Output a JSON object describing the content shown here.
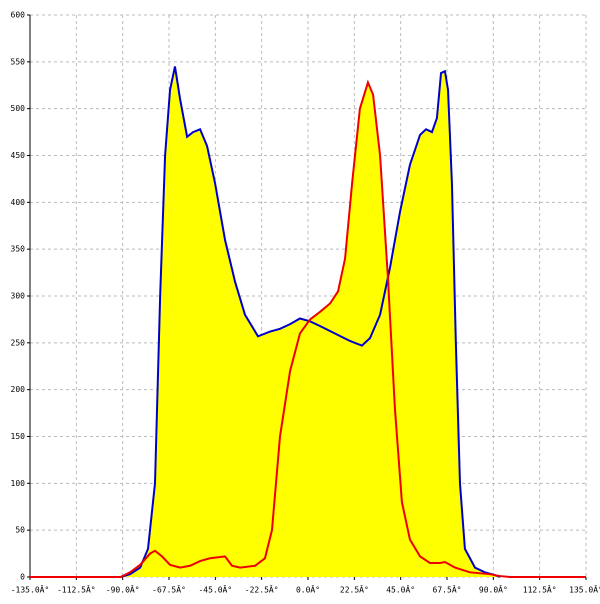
{
  "chart_data": {
    "type": "area",
    "xlim": [
      -135,
      135
    ],
    "ylim": [
      0,
      600
    ],
    "xticks": [
      {
        "value": -135,
        "label": "-135.0Â°"
      },
      {
        "value": -112.5,
        "label": "-112.5Â°"
      },
      {
        "value": -90,
        "label": "-90.0Â°"
      },
      {
        "value": -67.5,
        "label": "-67.5Â°"
      },
      {
        "value": -45,
        "label": "-45.0Â°"
      },
      {
        "value": -22.5,
        "label": "-22.5Â°"
      },
      {
        "value": 0,
        "label": "0.0Â°"
      },
      {
        "value": 22.5,
        "label": "22.5Â°"
      },
      {
        "value": 45,
        "label": "45.0Â°"
      },
      {
        "value": 67.5,
        "label": "67.5Â°"
      },
      {
        "value": 90,
        "label": "90.0Â°"
      },
      {
        "value": 112.5,
        "label": "112.5Â°"
      },
      {
        "value": 135,
        "label": "135.0Â°"
      }
    ],
    "yticks": [
      0,
      50,
      100,
      150,
      200,
      250,
      300,
      350,
      400,
      450,
      500,
      550,
      600
    ],
    "grid": true,
    "fill": "#ffff00",
    "series": [
      {
        "color": "#0000cc",
        "x": [
          -91,
          -86.4,
          -81.5,
          -77.7,
          -74.3,
          -71.8,
          -69.4,
          -67,
          -64.6,
          -62.1,
          -58.7,
          -55.8,
          -52.4,
          -49,
          -45.1,
          -40.3,
          -35.4,
          -30.6,
          -24.3,
          -18.4,
          -13.6,
          -8.7,
          -3.9,
          1,
          5.8,
          13.1,
          20.4,
          26.2,
          30.1,
          35,
          39.8,
          44.7,
          49.5,
          54.4,
          57.3,
          60.2,
          62.6,
          64.6,
          66.5,
          68,
          69.9,
          71.8,
          73.8,
          76.2,
          81.1,
          85.9,
          90.8,
          93.2
        ],
        "values": [
          0,
          3,
          10,
          30,
          100,
          300,
          450,
          520,
          545,
          510,
          470,
          475,
          478,
          460,
          420,
          360,
          315,
          280,
          257,
          262,
          265,
          270,
          276,
          273,
          268,
          260,
          252,
          247,
          255,
          280,
          330,
          390,
          440,
          472,
          478,
          475,
          490,
          538,
          540,
          520,
          420,
          250,
          100,
          30,
          10,
          5,
          2,
          0
        ]
      },
      {
        "color": "#ee0000",
        "x": [
          -135,
          -91,
          -86.4,
          -81.5,
          -76.7,
          -74.3,
          -70.9,
          -67,
          -62.1,
          -57.3,
          -52.4,
          -47.6,
          -40.3,
          -36.9,
          -33,
          -25.7,
          -20.9,
          -17.5,
          -13.6,
          -8.7,
          -3.9,
          1,
          5.8,
          10.7,
          14.6,
          18,
          21.4,
          25.2,
          29.1,
          31.6,
          35,
          38.8,
          42.2,
          45.6,
          49.5,
          54.4,
          59.2,
          64.1,
          66.5,
          71.4,
          78.6,
          88.3,
          93.2,
          98,
          135
        ],
        "values": [
          0,
          0,
          5,
          13,
          25,
          28,
          22,
          13,
          10,
          12,
          17,
          20,
          22,
          12,
          10,
          12,
          20,
          50,
          150,
          220,
          260,
          275,
          283,
          292,
          305,
          340,
          420,
          500,
          528,
          515,
          450,
          320,
          180,
          80,
          40,
          22,
          15,
          15,
          16,
          10,
          5,
          3,
          1,
          0,
          0
        ]
      }
    ]
  }
}
